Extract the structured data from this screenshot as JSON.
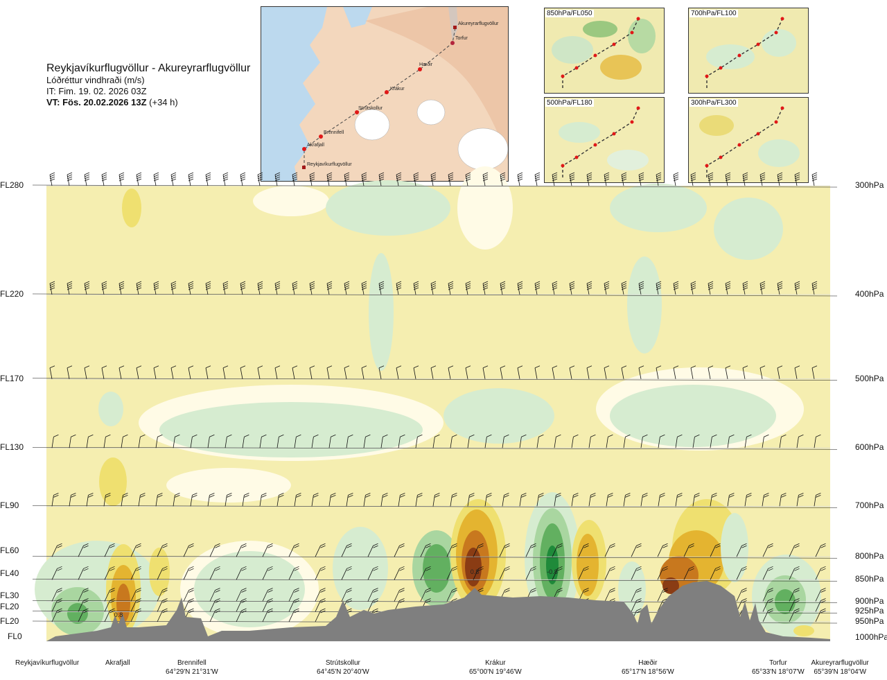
{
  "header": {
    "title": "Reykjavíkurflugvöllur - Akureyrarflugvöllur",
    "subtitle": "Lóðréttur vindhraði (m/s)",
    "it": "IT: Fim. 19. 02. 2026 03Z",
    "vt_bold": "VT: Fös. 20.02.2026 13Z",
    "vt_rest": " (+34 h)"
  },
  "overview_map": {
    "waypoints": [
      "Akureyrarflugvöllur",
      "Torfur",
      "Hæðir",
      "Krákur",
      "Strútskollur",
      "Brennifell",
      "Akrafjall",
      "Reykjavíkurflugvöllur"
    ]
  },
  "insets": [
    {
      "label": "850hPa/FL050"
    },
    {
      "label": "700hPa/FL100"
    },
    {
      "label": "500hPa/FL180"
    },
    {
      "label": "300hPa/FL300"
    }
  ],
  "chart_data": {
    "type": "heatmap",
    "title": "Lóðréttur vindhraði (m/s)",
    "flight_levels": [
      "FL280",
      "FL220",
      "FL170",
      "FL130",
      "FL90",
      "FL60",
      "FL40",
      "FL30",
      "FL20",
      "FL20",
      "FL0"
    ],
    "pressure_levels": [
      "300hPa",
      "400hPa",
      "500hPa",
      "600hPa",
      "700hPa",
      "800hPa",
      "850hPa",
      "900hPa",
      "925hPa",
      "950hPa",
      "1000hPa"
    ],
    "pressure_values": [
      300,
      400,
      500,
      600,
      700,
      800,
      850,
      900,
      925,
      950,
      1000
    ],
    "locations": [
      {
        "name": "Reykjavíkurflugvöllur",
        "coord": ""
      },
      {
        "name": "Akrafjall",
        "coord": ""
      },
      {
        "name": "Brennifell",
        "coord": "64°29'N 21°31'W"
      },
      {
        "name": "Strútskollur",
        "coord": "64°45'N 20°40'W"
      },
      {
        "name": "Krákur",
        "coord": "65°00'N 19°46'W"
      },
      {
        "name": "Hæðir",
        "coord": "65°17'N 18°56'W"
      },
      {
        "name": "Torfur",
        "coord": "65°33'N 18°07'W"
      },
      {
        "name": "Akureyrarflugvöllur",
        "coord": "65°39'N 18°04'W"
      }
    ],
    "annotations": [
      "0.8",
      "0.8",
      "-0.8"
    ],
    "colors": {
      "neutral": "#f5eeb0",
      "near_zero": "#fffbe6",
      "down_weak": "#d6ecd0",
      "down_mid": "#a9d6a0",
      "down_strong": "#62b060",
      "down_max": "#1f8a3a",
      "up_weak": "#efe070",
      "up_mid": "#e4b430",
      "up_strong": "#c8781e",
      "up_max": "#8a3c14",
      "terrain": "#7f7f7f"
    }
  }
}
